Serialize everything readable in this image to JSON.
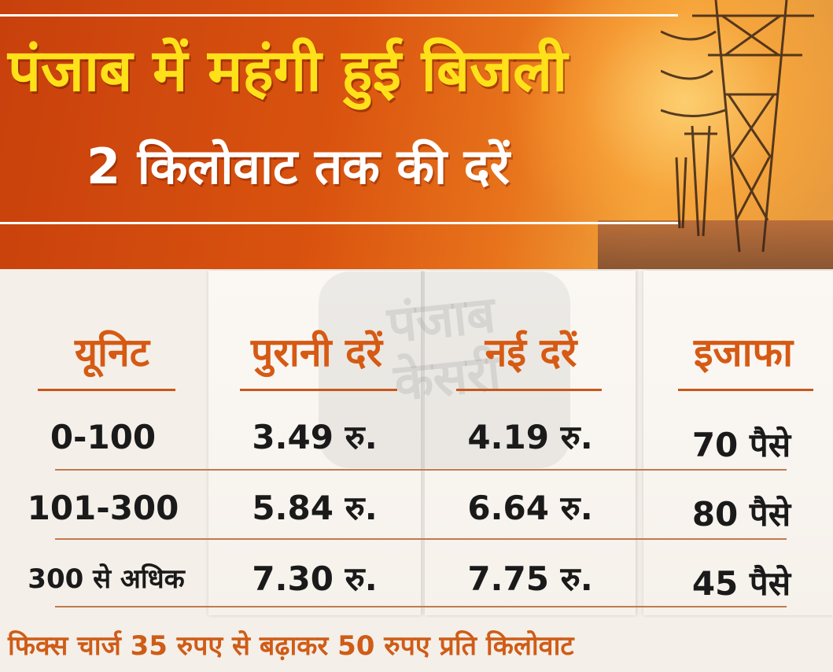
{
  "header": {
    "title": "पंजाब में महंगी हुई बिजली",
    "subtitle": "2 किलोवाट तक की दरें"
  },
  "watermark": {
    "line1": "पंजाब",
    "line2": "केसरी"
  },
  "table": {
    "columns": [
      "यूनिट",
      "पुरानी दरें",
      "नई दरें",
      "इजाफा"
    ],
    "rows": [
      {
        "unit": "0-100",
        "old_rate": "3.49 रु.",
        "new_rate": "4.19 रु.",
        "increase": "70 पैसे"
      },
      {
        "unit": "101-300",
        "old_rate": "5.84 रु.",
        "new_rate": "6.64 रु.",
        "increase": "80 पैसे"
      },
      {
        "unit": "300 से अधिक",
        "old_rate": "7.30 रु.",
        "new_rate": "7.75 रु.",
        "increase": "45 पैसे"
      }
    ]
  },
  "footer": {
    "note": "फिक्स चार्ज 35 रुपए से बढ़ाकर 50 रुपए प्रति किलोवाट"
  },
  "colors": {
    "banner_orange": "#d9530f",
    "title_yellow": "#ffe11a",
    "header_text": "#d65a13",
    "row_line": "#c07a4e"
  }
}
